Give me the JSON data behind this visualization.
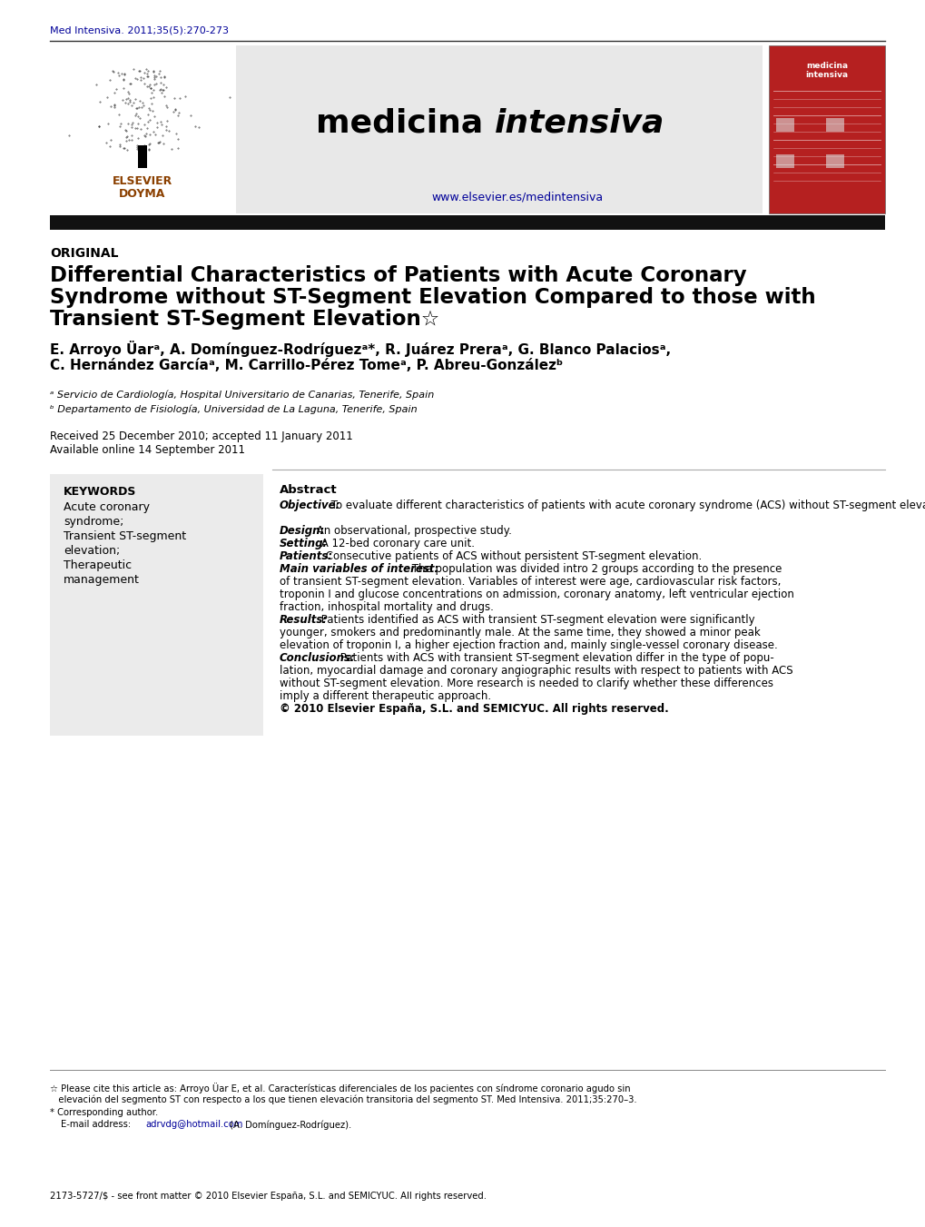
{
  "bg_color": "#ffffff",
  "journal_ref": "Med Intensiva. 2011;35(5):270-273",
  "journal_ref_color": "#000099",
  "journal_url": "www.elsevier.es/medintensiva",
  "section_label": "ORIGINAL",
  "authors_line1": "E. Arroyo Üarᵃ, A. Domínguez-Rodríguezᵃ*, R. Juárez Preraᵃ, G. Blanco Palaciosᵃ,",
  "authors_line2": "C. Hernández Garcíaᵃ, M. Carrillo-Pérez Tomeᵃ, P. Abreu-Gonzálezᵇ",
  "affil_a": "ᵃ Servicio de Cardiología, Hospital Universitario de Canarias, Tenerife, Spain",
  "affil_b": "ᵇ Departamento de Fisiología, Universidad de La Laguna, Tenerife, Spain",
  "received": "Received 25 December 2010; accepted 11 January 2011",
  "available": "Available online 14 September 2011",
  "keywords_header": "KEYWORDS",
  "kw1": "Acute coronary",
  "kw2": "syndrome;",
  "kw3": "Transient ST-segment",
  "kw4": "elevation;",
  "kw5": "Therapeutic",
  "kw6": "management",
  "abstract_header": "Abstract",
  "title_line1": "Differential Characteristics of Patients with Acute Coronary",
  "title_line2": "Syndrome without ST-Segment Elevation Compared to those with",
  "title_line3": "Transient ST-Segment Elevation☆",
  "copyright": "© 2010 Elsevier España, S.L. and SEMICYUC. All rights reserved.",
  "footnote1": "☆ Please cite this article as: Arroyo Üar E, et al. Características diferenciales de los pacientes con síndrome coronario agudo sin",
  "footnote2": "   elevación del segmento ST con respecto a los que tienen elevación transitoria del segmento ST. Med Intensiva. 2011;35:270–3.",
  "corresponding": "* Corresponding author.",
  "email_text": "adrvdg@hotmail.com",
  "email_suffix": " (A. Domínguez-Rodríguez).",
  "issn_line": "2173-5727/$ - see front matter © 2010 Elsevier España, S.L. and SEMICYUC. All rights reserved.",
  "header_gray": "#e8e8e8",
  "thick_bar_color": "#111111",
  "kw_box_color": "#ebebeb",
  "red_cover_color": "#b52020",
  "line_color": "#aaaaaa",
  "obj_label": "Objective:",
  "obj_text": " To evaluate different characteristics of patients with acute coronary syndrome (ACS) without ST-segment elevation compared with transient ST-segment elevation.",
  "design_label": "Design:",
  "design_text": " An observational, prospective study.",
  "setting_label": "Setting:",
  "setting_text": " A 12-bed coronary care unit.",
  "patients_label": "Patients:",
  "patients_text": " Consecutive patients of ACS without persistent ST-segment elevation.",
  "mvoi_label": "Main variables of interest:",
  "mvoi_text1": " The population was divided intro 2 groups according to the presence",
  "mvoi_text2": "of transient ST-segment elevation. Variables of interest were age, cardiovascular risk factors,",
  "mvoi_text3": "troponin I and glucose concentrations on admission, coronary anatomy, left ventricular ejection",
  "mvoi_text4": "fraction, inhospital mortality and drugs.",
  "results_label": "Results:",
  "results_text1": " Patients identified as ACS with transient ST-segment elevation were significantly",
  "results_text2": "younger, smokers and predominantly male. At the same time, they showed a minor peak",
  "results_text3": "elevation of troponin I, a higher ejection fraction and, mainly single-vessel coronary disease.",
  "concl_label": "Conclusions:",
  "concl_text1": " Patients with ACS with transient ST-segment elevation differ in the type of popu-",
  "concl_text2": "lation, myocardial damage and coronary angiographic results with respect to patients with ACS",
  "concl_text3": "without ST-segment elevation. More research is needed to clarify whether these differences",
  "concl_text4": "imply a different therapeutic approach."
}
